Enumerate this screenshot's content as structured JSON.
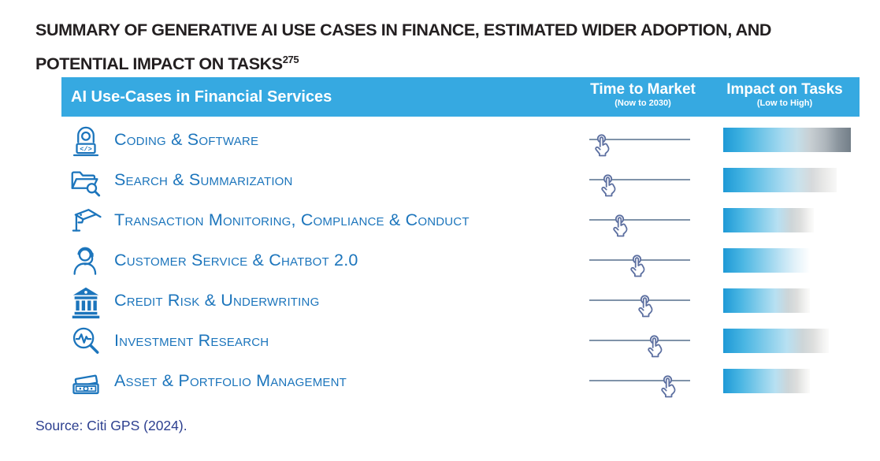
{
  "title": {
    "line1": "SUMMARY OF GENERATIVE AI USE CASES IN FINANCE, ESTIMATED WIDER ADOPTION, AND",
    "line2": "POTENTIAL IMPACT ON TASKS",
    "footnote": "275"
  },
  "header": {
    "use_cases": "AI Use-Cases in Financial Services",
    "time_to_market": {
      "label": "Time to Market",
      "sub": "(Now to 2030)"
    },
    "impact": {
      "label": "Impact on Tasks",
      "sub": "(Low to High)"
    }
  },
  "rows": [
    {
      "label": "Coding & Software",
      "icon": "coder-icon",
      "time_to_market": 0.12,
      "impact": 1.0,
      "bar_end": "darkgray"
    },
    {
      "label": "Search & Summarization",
      "icon": "folder-search-icon",
      "time_to_market": 0.18,
      "impact": 0.89,
      "bar_end": "graylight"
    },
    {
      "label": "Transaction Monitoring, Compliance & Conduct",
      "icon": "cctv-icon",
      "time_to_market": 0.3,
      "impact": 0.71,
      "bar_end": "gray"
    },
    {
      "label": "Customer Service & Chatbot 2.0",
      "icon": "headset-icon",
      "time_to_market": 0.47,
      "impact": 0.68,
      "bar_end": "white"
    },
    {
      "label": "Credit Risk & Underwriting",
      "icon": "bank-icon",
      "time_to_market": 0.55,
      "impact": 0.68,
      "bar_end": "gray"
    },
    {
      "label": "Investment Research",
      "icon": "chart-search-icon",
      "time_to_market": 0.64,
      "impact": 0.83,
      "bar_end": "gray"
    },
    {
      "label": "Asset & Portfolio Management",
      "icon": "banknotes-icon",
      "time_to_market": 0.77,
      "impact": 0.68,
      "bar_end": "gray"
    }
  ],
  "source": "Source: Citi GPS (2024).",
  "colors": {
    "header_bg": "#36a9e1",
    "label_blue": "#1c75bc",
    "bar_blue_start": "#1e99d6",
    "bar_gray_end": "#737e88",
    "slider_line": "#8093a9",
    "hand_icon": "#5c6fa0",
    "title_text": "#231f20",
    "source_text": "#2c3f8f"
  },
  "chart_data": {
    "type": "table",
    "title": "Summary of Generative AI Use Cases in Finance, Estimated Wider Adoption, and Potential Impact on Tasks",
    "footnote_marker": "275",
    "columns": [
      "AI Use-Cases in Financial Services",
      "Time to Market (Now to 2030)",
      "Impact on Tasks (Low to High)"
    ],
    "categories": [
      "Coding & Software",
      "Search & Summarization",
      "Transaction Monitoring, Compliance & Conduct",
      "Customer Service & Chatbot 2.0",
      "Credit Risk & Underwriting",
      "Investment Research",
      "Asset & Portfolio Management"
    ],
    "series": [
      {
        "name": "Time to Market (Now to 2030)",
        "scale": "0 = Now, 1 = 2030",
        "values": [
          0.12,
          0.18,
          0.3,
          0.47,
          0.55,
          0.64,
          0.77
        ]
      },
      {
        "name": "Impact on Tasks (Low to High)",
        "scale": "0 = Low, 1 = High",
        "values": [
          1.0,
          0.89,
          0.71,
          0.68,
          0.68,
          0.83,
          0.68
        ]
      }
    ],
    "legend_position": "none",
    "grid": false,
    "source": "Source: Citi GPS (2024)."
  }
}
